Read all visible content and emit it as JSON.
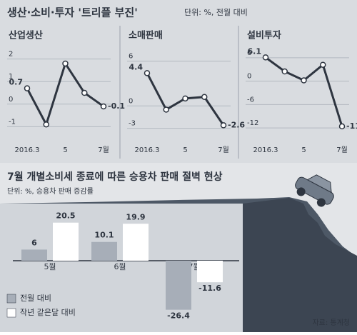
{
  "header": {
    "title": "생산·소비·투자 '트리플 부진'",
    "unit": "단위: %, 전월 대비"
  },
  "chart_data": [
    {
      "type": "line",
      "title": "산업생산",
      "categories": [
        "2016.3",
        null,
        "5",
        null,
        "7월"
      ],
      "values": [
        0.7,
        -0.9,
        1.8,
        0.5,
        -0.1
      ],
      "value_labels": [
        "0.7",
        null,
        null,
        null,
        "-0.1"
      ],
      "ylim": [
        -1.4,
        2.4
      ],
      "yticks": [
        2,
        1,
        0,
        -1
      ],
      "color": "#2e3540"
    },
    {
      "type": "line",
      "title": "소매판매",
      "categories": [
        "2016.3",
        null,
        "5",
        null,
        "7월"
      ],
      "values": [
        4.4,
        -0.5,
        1.0,
        1.2,
        -2.6
      ],
      "value_labels": [
        "4.4",
        null,
        null,
        null,
        "-2.6"
      ],
      "ylim": [
        -4,
        7.5
      ],
      "yticks": [
        6,
        0,
        -3
      ],
      "color": "#2e3540"
    },
    {
      "type": "line",
      "title": "설비투자",
      "categories": [
        "2016.3",
        null,
        "5",
        null,
        "7월"
      ],
      "values": [
        6.1,
        2.5,
        0.2,
        4.2,
        -11.6
      ],
      "value_labels": [
        "6.1",
        null,
        null,
        null,
        "-11.6"
      ],
      "ylim": [
        -14,
        8
      ],
      "yticks": [
        6,
        0,
        -6,
        -12
      ],
      "color": "#2e3540"
    },
    {
      "type": "bar",
      "title": "7월 개별소비세 종료에 따른 승용차 판매 절벽 현상",
      "subtitle": "단위: %, 승용차 판매 증감률",
      "categories": [
        "5월",
        "6월",
        "7월"
      ],
      "ylim": [
        -30,
        25
      ],
      "series": [
        {
          "name": "전월 대비",
          "color": "#a7aeb8",
          "values": [
            6,
            10.1,
            -26.4
          ]
        },
        {
          "name": "작년 같은달 대비",
          "color": "#ffffff",
          "values": [
            20.5,
            19.9,
            -11.6
          ]
        }
      ],
      "legend": "lower-left"
    }
  ],
  "source": "자료: 통계청"
}
